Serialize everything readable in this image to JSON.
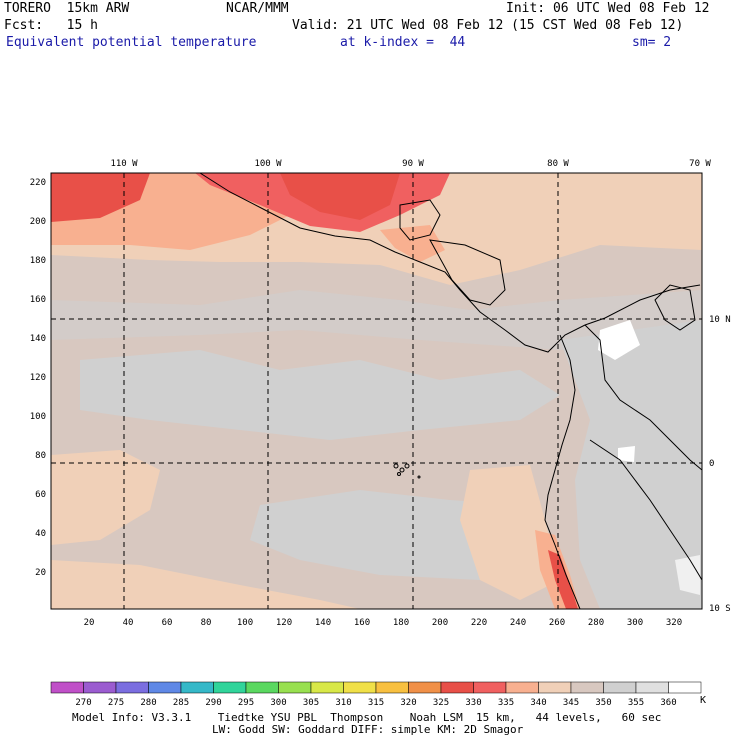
{
  "header": {
    "model": "TORERO  15km ARW",
    "center": "NCAR/MMM",
    "init": "Init: 06 UTC Wed 08 Feb 12",
    "fcst": "Fcst:   15 h",
    "valid": "Valid: 21 UTC Wed 08 Feb 12 (15 CST Wed 08 Feb 12)",
    "field": "Equivalent potential temperature",
    "level": "at k-index =  44",
    "smooth": "sm= 2"
  },
  "map": {
    "lon_labels": [
      "110 W",
      "100 W",
      "90 W",
      "80 W",
      "70 W"
    ],
    "lat_labels": [
      "10 N",
      "0",
      "10 S"
    ],
    "y_ticks": [
      "220",
      "200",
      "180",
      "160",
      "140",
      "120",
      "100",
      "80",
      "60",
      "40",
      "20"
    ],
    "x_ticks": [
      "20",
      "40",
      "60",
      "80",
      "100",
      "120",
      "140",
      "160",
      "180",
      "200",
      "220",
      "240",
      "260",
      "280",
      "300",
      "320"
    ]
  },
  "colorbar": {
    "unit": "K",
    "levels": [
      "270",
      "275",
      "280",
      "285",
      "290",
      "295",
      "300",
      "305",
      "310",
      "315",
      "320",
      "325",
      "330",
      "335",
      "340",
      "345",
      "350",
      "355",
      "360"
    ],
    "colors": [
      "#c050c8",
      "#9b5cd0",
      "#7b6ee0",
      "#5f88e6",
      "#35b8c8",
      "#30d49a",
      "#5ad860",
      "#98e050",
      "#d8e848",
      "#f0e048",
      "#f8c040",
      "#f09048",
      "#e85048",
      "#f06060",
      "#f8b090",
      "#f0d0b8",
      "#d8c8c0",
      "#d0d0d0",
      "#e0e0e0",
      "#ffffff"
    ]
  },
  "footer": {
    "line1": "Model Info: V3.3.1    Tiedtke YSU PBL  Thompson    Noah LSM  15 km,   44 levels,   60 sec",
    "line2": "LW: Godd SW: Goddard DIFF: simple KM: 2D Smagor"
  }
}
